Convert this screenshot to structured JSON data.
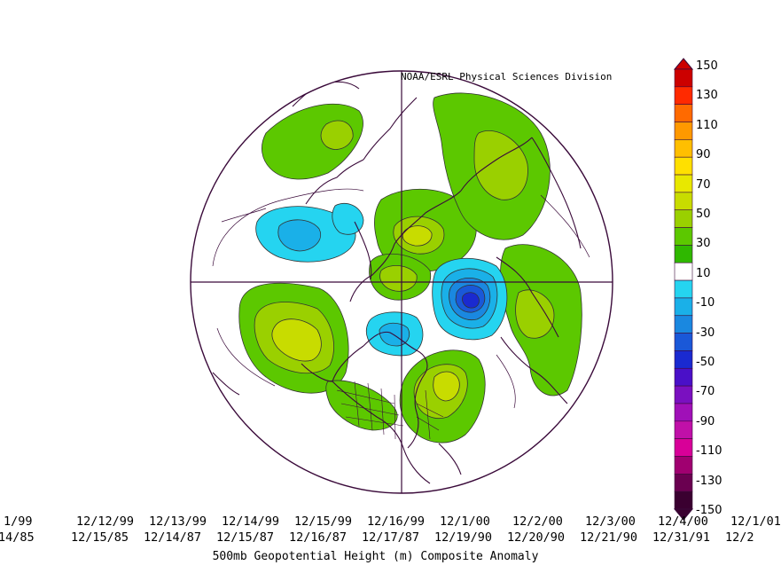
{
  "credit": "NOAA/ESRL Physical Sciences Division",
  "title": "500mb Geopotential Height (m) Composite Anomaly",
  "dates_row1": [
    "1/99",
    "12/12/99",
    "12/13/99",
    "12/14/99",
    "12/15/99",
    "12/16/99",
    "12/1/00",
    "12/2/00",
    "12/3/00",
    "12/4/00",
    "12/1/01"
  ],
  "dates_row2": [
    "14/85",
    "12/15/85",
    "12/14/87",
    "12/15/87",
    "12/16/87",
    "12/17/87",
    "12/19/90",
    "12/20/90",
    "12/21/90",
    "12/31/91",
    "12/2"
  ],
  "colorbar": {
    "labels": [
      "150",
      "130",
      "110",
      "90",
      "70",
      "50",
      "30",
      "10",
      "-10",
      "-30",
      "-50",
      "-70",
      "-90",
      "-110",
      "-130",
      "-150"
    ],
    "colors": [
      "#cc0000",
      "#ff2a00",
      "#ff6a00",
      "#ff9900",
      "#ffbf00",
      "#ffe000",
      "#e8e800",
      "#c8dc00",
      "#9ad000",
      "#5cc800",
      "#2fb800",
      "#ffffff",
      "#25d4f0",
      "#1ab0e8",
      "#1a88e0",
      "#1a58d8",
      "#1a2ad0",
      "#4a10c8",
      "#7a10c0",
      "#a010b8",
      "#c010a8",
      "#d80098",
      "#a00070",
      "#6a0050",
      "#3a0030"
    ]
  },
  "anomaly_centers": [
    {
      "name": "positive-anomaly-north-pacific",
      "sign": "positive"
    },
    {
      "name": "positive-anomaly-greenland",
      "sign": "positive"
    },
    {
      "name": "positive-anomaly-eastern-us-atlantic",
      "sign": "positive"
    },
    {
      "name": "positive-anomaly-europe",
      "sign": "positive"
    },
    {
      "name": "positive-anomaly-siberia",
      "sign": "positive"
    },
    {
      "name": "negative-anomaly-western-russia",
      "sign": "negative"
    },
    {
      "name": "negative-anomaly-hudson-bay",
      "sign": "negative"
    },
    {
      "name": "negative-anomaly-east-asia",
      "sign": "negative"
    }
  ]
}
